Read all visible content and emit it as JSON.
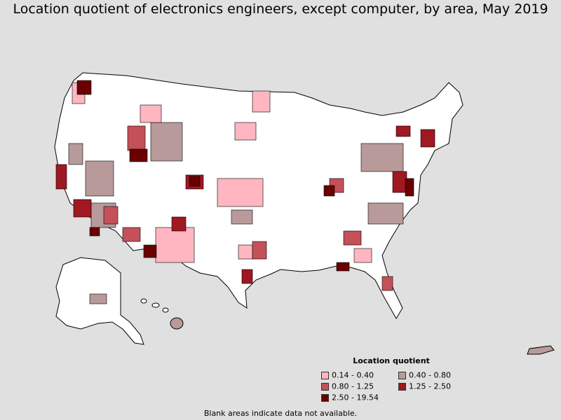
{
  "title": "Location quotient of electronics engineers, except computer, by area, May 2019",
  "legend": {
    "title": "Location quotient",
    "items": [
      {
        "label": "0.14 - 0.40",
        "color": "#ffb6c1"
      },
      {
        "label": "0.40 - 0.80",
        "color": "#b89a9a"
      },
      {
        "label": "0.80 - 1.25",
        "color": "#c4505a"
      },
      {
        "label": "1.25 - 2.50",
        "color": "#a01822"
      },
      {
        "label": "2.50 - 19.54",
        "color": "#6a0000"
      }
    ]
  },
  "footnote": "Blank areas indicate data not available.",
  "map": {
    "background_color": "#e0e0e0",
    "land_color": "#ffffff",
    "border_color": "#000000"
  }
}
